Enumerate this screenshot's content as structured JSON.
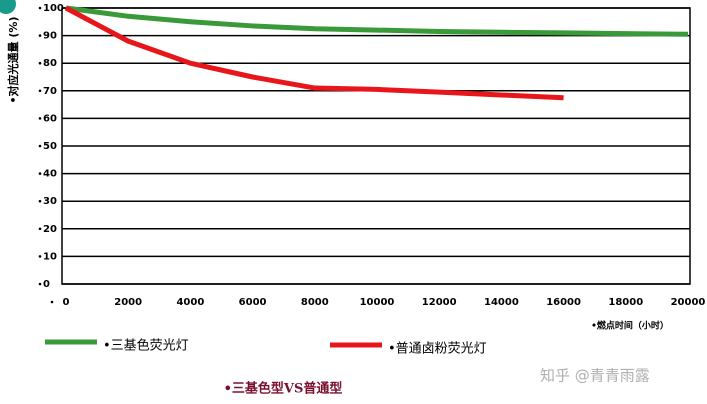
{
  "chart_data": {
    "type": "line",
    "title": "•三基色型VS普通型",
    "y_label": "•对应光通量 (%)",
    "x_label": "•燃点时间（小时）",
    "watermark": "知乎 @青青雨露",
    "xlim": [
      0,
      20000
    ],
    "xticks": [
      0,
      2000,
      4000,
      6000,
      8000,
      10000,
      12000,
      14000,
      16000,
      18000,
      20000
    ],
    "ylim": [
      0,
      100
    ],
    "yticks": [
      0,
      10,
      20,
      30,
      40,
      50,
      60,
      70,
      80,
      90,
      100
    ],
    "grid": true,
    "series": [
      {
        "name": "•三基色荧光灯",
        "color": "#3a9a3a",
        "x": [
          0,
          2000,
          4000,
          6000,
          8000,
          10000,
          12000,
          14000,
          16000,
          18000,
          20000
        ],
        "values": [
          100,
          97,
          95,
          93.5,
          92.5,
          92,
          91.5,
          91.2,
          91,
          90.7,
          90.5
        ]
      },
      {
        "name": "•普通卤粉荧光灯",
        "color": "#e8161b",
        "x": [
          0,
          1000,
          2000,
          4000,
          6000,
          8000,
          10000,
          12000,
          14000,
          16000
        ],
        "values": [
          100,
          94,
          88,
          80,
          75,
          71,
          70.5,
          69.5,
          68.5,
          67.5
        ]
      }
    ]
  }
}
